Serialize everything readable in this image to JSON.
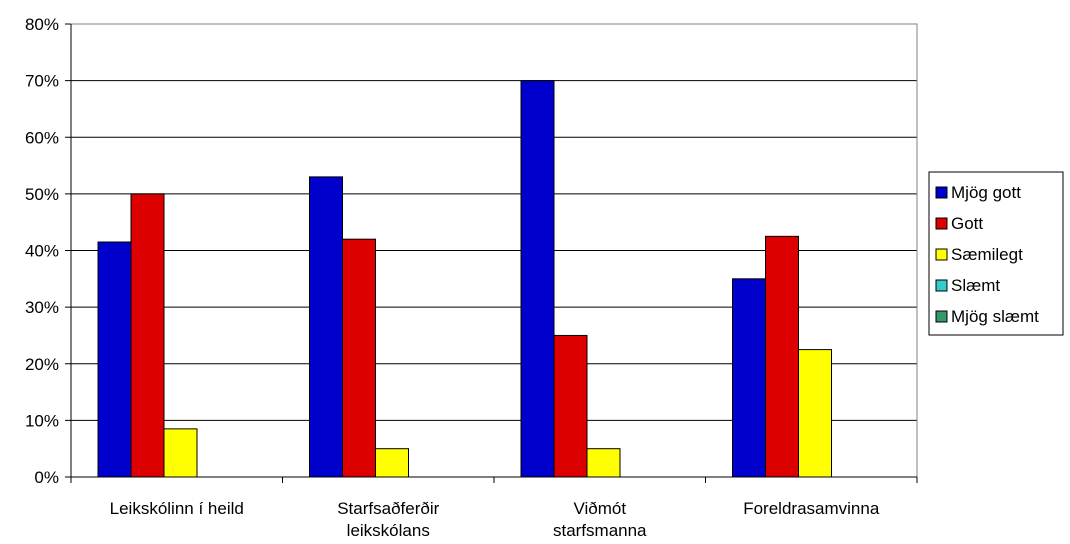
{
  "chart_data": {
    "type": "bar",
    "categories": [
      [
        "Leikskólinn í heild"
      ],
      [
        "Starfsaðferðir",
        "leikskólans"
      ],
      [
        "Viðmót",
        "starfsmanna"
      ],
      [
        "Foreldrasamvinna"
      ]
    ],
    "series": [
      {
        "name": "Mjög gott",
        "color": "#0000cc",
        "values": [
          41.5,
          53,
          70,
          35
        ]
      },
      {
        "name": "Gott",
        "color": "#dd0000",
        "values": [
          50,
          42,
          25,
          42.5
        ]
      },
      {
        "name": "Sæmilegt",
        "color": "#ffff00",
        "values": [
          8.5,
          5,
          5,
          22.5
        ]
      },
      {
        "name": "Slæmt",
        "color": "#33cccc",
        "values": [
          0,
          0,
          0,
          0
        ]
      },
      {
        "name": "Mjög slæmt",
        "color": "#339966",
        "values": [
          0,
          0,
          0,
          0
        ]
      }
    ],
    "yticks": [
      "0%",
      "10%",
      "20%",
      "30%",
      "40%",
      "50%",
      "60%",
      "70%",
      "80%"
    ],
    "ylim": [
      0,
      80
    ],
    "grid": true,
    "legend": "right"
  }
}
